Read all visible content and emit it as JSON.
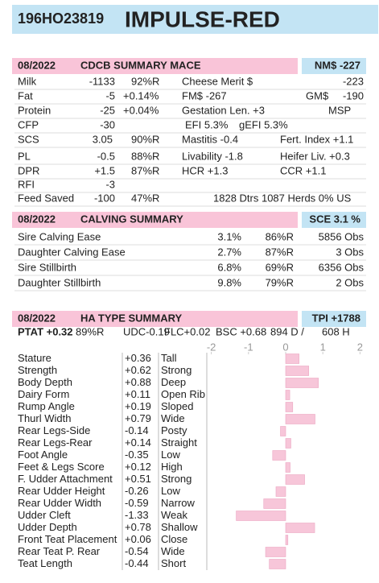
{
  "header": {
    "id": "196HO23819",
    "name": "IMPULSE-RED"
  },
  "cdcb": {
    "date": "08/2022",
    "title": "CDCB SUMMARY MACE",
    "badge": "NM$ -227",
    "rows": [
      [
        "Milk",
        "-1133",
        "92%R",
        "Cheese Merit $",
        "-223"
      ],
      [
        "Fat",
        "-5",
        "+0.14%",
        "FM$ -267",
        "GM$",
        "-190"
      ],
      [
        "Protein",
        "-25",
        "+0.04%",
        "Gestation Len. +3",
        "MSP"
      ],
      [
        "CFP",
        "-30",
        "EFI  5.3%",
        "gEFI  5.3%"
      ],
      [
        "SCS",
        "3.05",
        "90%R",
        "Mastitis  -0.4",
        "Fert. Index  +1.1"
      ],
      [
        "PL",
        "-0.5",
        "88%R",
        "Livability  -1.8",
        "Heifer Liv.  +0.3"
      ],
      [
        "DPR",
        "+1.5",
        "87%R",
        "HCR  +1.3",
        "CCR  +1.1"
      ],
      [
        "RFI",
        "-3"
      ],
      [
        "Feed Saved",
        "-100",
        "47%R",
        "1828 Dtrs  1087 Herds  0% US"
      ]
    ]
  },
  "calving": {
    "date": "08/2022",
    "title": "CALVING SUMMARY",
    "badge": "SCE 3.1 %",
    "rows": [
      [
        "Sire Calving Ease",
        "3.1%",
        "86%R",
        "5856 Obs"
      ],
      [
        "Daughter Calving Ease",
        "2.7%",
        "87%R",
        "3 Obs"
      ],
      [
        "Sire Stillbirth",
        "6.8%",
        "69%R",
        "6356 Obs"
      ],
      [
        "Daughter Stillbirth",
        "9.8%",
        "79%R",
        "2 Obs"
      ]
    ]
  },
  "type_summary": {
    "date": "08/2022",
    "title": "HA TYPE SUMMARY",
    "badge": "TPI +1788",
    "summary": [
      "PTAT +0.32",
      "89%R",
      "UDC-0.19",
      "FLC+0.02",
      "BSC +0.68",
      "894 D /",
      "608 H"
    ],
    "chart_data": {
      "type": "bar",
      "xlim": [
        -2.1,
        2.1
      ],
      "xticks": [
        -2,
        -1,
        0,
        1,
        2
      ],
      "color": "#f7c6d9",
      "categories": [
        "Stature",
        "Strength",
        "Body Depth",
        "Dairy Form",
        "Rump Angle",
        "Thurl Width",
        "Rear Legs-Side",
        "Rear Legs-Rear",
        "Foot Angle",
        "Feet & Legs Score",
        "F. Udder Attachment",
        "Rear Udder Height",
        "Rear Udder Width",
        "Udder Cleft",
        "Udder Depth",
        "Front Teat Placement",
        "Rear Teat P. Rear",
        "Teat Length"
      ],
      "values": [
        0.36,
        0.62,
        0.88,
        0.11,
        0.19,
        0.79,
        -0.14,
        0.14,
        -0.35,
        0.12,
        0.51,
        -0.26,
        -0.59,
        -1.33,
        0.78,
        0.06,
        -0.54,
        -0.44
      ],
      "value_labels": [
        "+0.36",
        "+0.62",
        "+0.88",
        "+0.11",
        "+0.19",
        "+0.79",
        "-0.14",
        "+0.14",
        "-0.35",
        "+0.12",
        "+0.51",
        "-0.26",
        "-0.59",
        "-1.33",
        "+0.78",
        "+0.06",
        "-0.54",
        "-0.44"
      ],
      "descriptors": [
        "Tall",
        "Strong",
        "Deep",
        "Open Rib",
        "Sloped",
        "Wide",
        "Posty",
        "Straight",
        "Low",
        "High",
        "Strong",
        "Low",
        "Narrow",
        "Weak",
        "Shallow",
        "Close",
        "Wide",
        "Short"
      ]
    }
  }
}
